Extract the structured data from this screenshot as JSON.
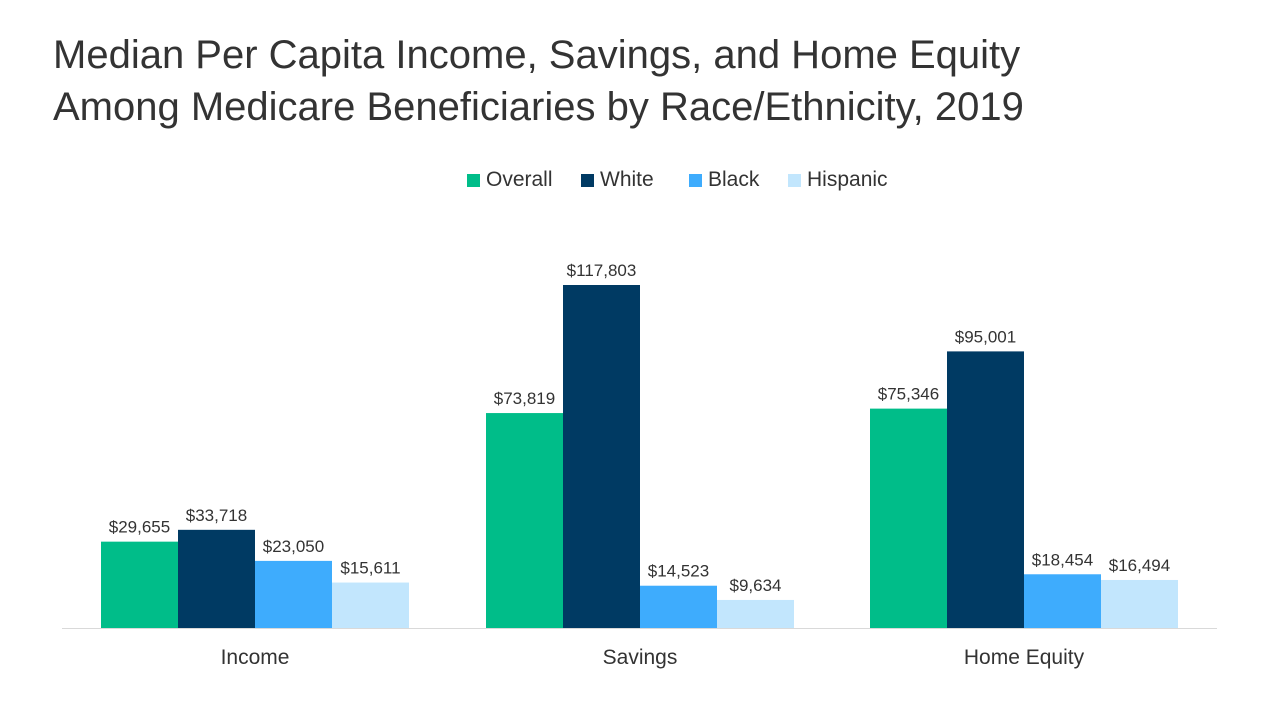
{
  "chart_data": {
    "type": "bar",
    "title": "Median Per Capita Income, Savings, and Home Equity Among Medicare Beneficiaries by Race/Ethnicity, 2019",
    "title_lines": [
      "Median Per Capita Income, Savings, and Home Equity",
      "Among Medicare Beneficiaries by Race/Ethnicity, 2019"
    ],
    "categories": [
      "Income",
      "Savings",
      "Home Equity"
    ],
    "series": [
      {
        "name": "Overall",
        "color": "#00BD89",
        "values": [
          29655,
          73819,
          75346
        ],
        "labels": [
          "$29,655",
          "$73,819",
          "$75,346"
        ]
      },
      {
        "name": "White",
        "color": "#003A63",
        "values": [
          33718,
          117803,
          95001
        ],
        "labels": [
          "$33,718",
          "$117,803",
          "$95,001"
        ]
      },
      {
        "name": "Black",
        "color": "#3EACFD",
        "values": [
          23050,
          14523,
          18454
        ],
        "labels": [
          "$23,050",
          "$14,523",
          "$18,454"
        ]
      },
      {
        "name": "Hispanic",
        "color": "#C2E6FD",
        "values": [
          15611,
          9634,
          16494
        ],
        "labels": [
          "$15,611",
          "$9,634",
          "$16,494"
        ]
      }
    ],
    "legend_position": "top-center",
    "grid": false,
    "xlabel": "",
    "ylabel": ""
  }
}
